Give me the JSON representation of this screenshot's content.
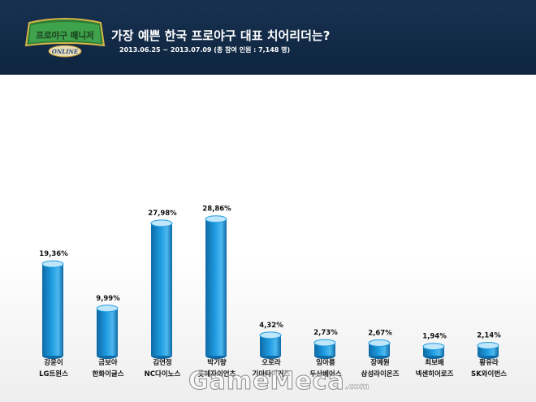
{
  "header": {
    "logo_top": "프로야구 매니저",
    "logo_bottom": "ONLINE",
    "title": "가장 예쁜 한국 프로야구 대표 치어리더는?",
    "subtitle": "2013.06.25 ~ 2013.07.09 (총 참여 인원 : 7,148 명)"
  },
  "watermark": {
    "text": "GameMeca",
    "suffix": ".com"
  },
  "colors": {
    "header_bg": "#17314f",
    "bar_front": "#1e9be0",
    "bar_top": "#bfe6fb",
    "bar_edge": "#0f6aa6"
  },
  "chart_data": {
    "type": "bar",
    "title": "",
    "xlabel": "",
    "ylabel": "",
    "ylim": [
      0,
      30
    ],
    "grid": false,
    "legend": "none",
    "categories": [
      [
        "강윤이",
        "LG트윈스"
      ],
      [
        "금보아",
        "한화이글스"
      ],
      [
        "김연정",
        "NC다이노스"
      ],
      [
        "박기량",
        "롯데자이언츠"
      ],
      [
        "오로라",
        "기아타이거즈"
      ],
      [
        "임아름",
        "두산베어스"
      ],
      [
        "장예원",
        "삼성라이온즈"
      ],
      [
        "최보배",
        "넥센히어로즈"
      ],
      [
        "황유라",
        "SK와이번스"
      ]
    ],
    "values": [
      19.36,
      9.99,
      27.98,
      28.86,
      4.32,
      2.73,
      2.67,
      1.94,
      2.14
    ],
    "labels": [
      "19,36%",
      "9,99%",
      "27,98%",
      "28,86%",
      "4,32%",
      "2,73%",
      "2,67%",
      "1,94%",
      "2,14%"
    ]
  }
}
